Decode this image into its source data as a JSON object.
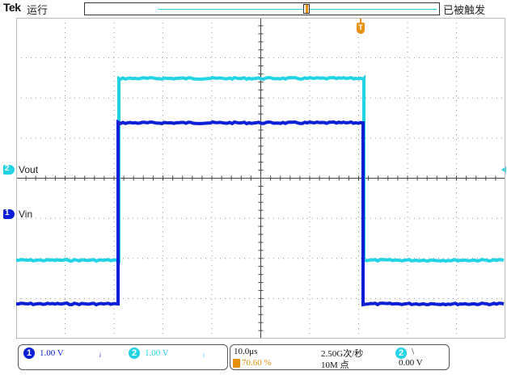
{
  "header": {
    "brand": "Tek",
    "run_status": "运行",
    "trigger_status": "已被触发"
  },
  "markers": {
    "trigger_marker": "T",
    "ch2_marker": "2",
    "ch1_marker": "1"
  },
  "channels": {
    "ch2_label": "Vout",
    "ch1_label": "Vin"
  },
  "colors": {
    "ch1": "#0a1fd6",
    "ch2": "#22d3e6",
    "trigger": "#e8900c",
    "grid": "#9a9a9a",
    "axis": "#444444"
  },
  "statusbar": {
    "ch1_num": "1",
    "ch1_scale": "1.00 V",
    "ch1_bw_icon": "bandwidth-icon",
    "ch1_bw": "ⱼ",
    "ch2_num": "2",
    "ch2_scale": "1.00 V",
    "ch2_bw": "ⱼ",
    "timebase": "10.0μs",
    "trigger_pos": "70.60 %",
    "sample_rate": "2.50G次/秒",
    "record_length": "10M 点",
    "trig_source": "2",
    "trig_slope": "\\",
    "trig_level": "0.00 V"
  }
}
